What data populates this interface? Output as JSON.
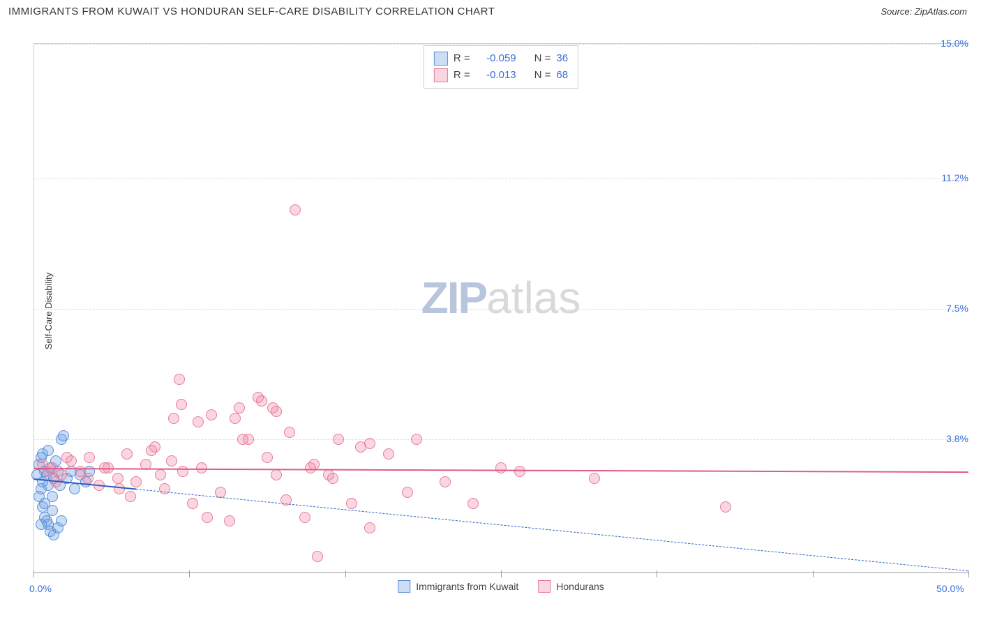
{
  "title": "IMMIGRANTS FROM KUWAIT VS HONDURAN SELF-CARE DISABILITY CORRELATION CHART",
  "source_label": "Source: ZipAtlas.com",
  "y_axis_label": "Self-Care Disability",
  "watermark": {
    "zip": "ZIP",
    "atlas": "atlas"
  },
  "chart": {
    "type": "scatter",
    "xlim": [
      0,
      50
    ],
    "ylim": [
      0,
      15
    ],
    "x_ticks": [
      0,
      50
    ],
    "x_tick_labels": [
      "0.0%",
      "50.0%"
    ],
    "x_minor_ticks": [
      0,
      8.33,
      16.67,
      25,
      33.33,
      41.67,
      50
    ],
    "y_ticks": [
      3.8,
      7.5,
      11.2,
      15.0
    ],
    "y_tick_labels": [
      "3.8%",
      "7.5%",
      "11.2%",
      "15.0%"
    ],
    "background_color": "#ffffff",
    "grid_color": "#dddddd",
    "axis_color": "#999999",
    "tick_label_color": "#3b6fd6",
    "marker_radius": 8,
    "series": [
      {
        "name": "Immigrants from Kuwait",
        "marker_fill": "rgba(110,160,230,0.35)",
        "marker_stroke": "#5a8fd8",
        "R": -0.059,
        "N": 36,
        "trend": {
          "start": [
            0,
            2.7
          ],
          "end": [
            50,
            0.1
          ],
          "solid_frac": 0.11,
          "color": "#2d5fc4",
          "width": 2
        },
        "points": [
          [
            0.3,
            3.1
          ],
          [
            0.5,
            2.6
          ],
          [
            0.6,
            2.9
          ],
          [
            0.4,
            2.4
          ],
          [
            0.7,
            2.8
          ],
          [
            0.8,
            2.5
          ],
          [
            0.9,
            3.0
          ],
          [
            1.0,
            2.2
          ],
          [
            1.1,
            2.7
          ],
          [
            1.2,
            3.2
          ],
          [
            0.5,
            1.9
          ],
          [
            0.6,
            1.6
          ],
          [
            0.7,
            1.5
          ],
          [
            0.8,
            1.4
          ],
          [
            0.9,
            1.2
          ],
          [
            1.5,
            3.8
          ],
          [
            1.6,
            3.9
          ],
          [
            1.3,
            2.9
          ],
          [
            1.4,
            2.5
          ],
          [
            1.8,
            2.7
          ],
          [
            2.0,
            2.9
          ],
          [
            2.2,
            2.4
          ],
          [
            1.0,
            1.8
          ],
          [
            1.1,
            1.1
          ],
          [
            1.3,
            1.3
          ],
          [
            1.5,
            1.5
          ],
          [
            0.4,
            3.3
          ],
          [
            0.3,
            2.2
          ],
          [
            0.5,
            3.4
          ],
          [
            0.2,
            2.8
          ],
          [
            0.6,
            2.0
          ],
          [
            2.5,
            2.8
          ],
          [
            2.8,
            2.6
          ],
          [
            3.0,
            2.9
          ],
          [
            0.4,
            1.4
          ],
          [
            0.8,
            3.5
          ]
        ]
      },
      {
        "name": "Hondurans",
        "marker_fill": "rgba(240,140,165,0.35)",
        "marker_stroke": "#e77a98",
        "R": -0.013,
        "N": 68,
        "trend": {
          "start": [
            0,
            3.0
          ],
          "end": [
            50,
            2.9
          ],
          "solid_frac": 1.0,
          "color": "#e05b88",
          "width": 2
        },
        "points": [
          [
            0.5,
            3.1
          ],
          [
            1.0,
            3.0
          ],
          [
            1.5,
            2.8
          ],
          [
            2.0,
            3.2
          ],
          [
            2.5,
            2.9
          ],
          [
            3.0,
            3.3
          ],
          [
            3.5,
            2.5
          ],
          [
            4.0,
            3.0
          ],
          [
            4.5,
            2.7
          ],
          [
            5.0,
            3.4
          ],
          [
            5.5,
            2.6
          ],
          [
            6.0,
            3.1
          ],
          [
            6.5,
            3.6
          ],
          [
            7.0,
            2.4
          ],
          [
            7.5,
            4.4
          ],
          [
            8.0,
            2.9
          ],
          [
            7.8,
            5.5
          ],
          [
            7.9,
            4.8
          ],
          [
            8.5,
            2.0
          ],
          [
            9.0,
            3.0
          ],
          [
            9.5,
            4.5
          ],
          [
            10.0,
            2.3
          ],
          [
            10.5,
            1.5
          ],
          [
            11.0,
            4.7
          ],
          [
            11.5,
            3.8
          ],
          [
            12.0,
            5.0
          ],
          [
            12.2,
            4.9
          ],
          [
            13.0,
            2.8
          ],
          [
            13.0,
            4.6
          ],
          [
            13.5,
            2.1
          ],
          [
            13.7,
            4.0
          ],
          [
            14.0,
            10.3
          ],
          [
            14.5,
            1.6
          ],
          [
            15.0,
            3.1
          ],
          [
            15.2,
            0.5
          ],
          [
            15.8,
            2.8
          ],
          [
            16.0,
            2.7
          ],
          [
            16.3,
            3.8
          ],
          [
            17.0,
            2.0
          ],
          [
            17.5,
            3.6
          ],
          [
            18.0,
            1.3
          ],
          [
            18.0,
            3.7
          ],
          [
            19.0,
            3.4
          ],
          [
            20.0,
            2.3
          ],
          [
            20.5,
            3.8
          ],
          [
            22.0,
            2.6
          ],
          [
            23.5,
            2.0
          ],
          [
            25.0,
            3.0
          ],
          [
            26.0,
            2.9
          ],
          [
            30.0,
            2.7
          ],
          [
            37.0,
            1.9
          ],
          [
            5.2,
            2.2
          ],
          [
            6.3,
            3.5
          ],
          [
            4.6,
            2.4
          ],
          [
            3.8,
            3.0
          ],
          [
            2.9,
            2.7
          ],
          [
            1.8,
            3.3
          ],
          [
            1.2,
            2.6
          ],
          [
            0.8,
            2.9
          ],
          [
            6.8,
            2.8
          ],
          [
            8.8,
            4.3
          ],
          [
            10.8,
            4.4
          ],
          [
            12.5,
            3.3
          ],
          [
            14.8,
            3.0
          ],
          [
            9.3,
            1.6
          ],
          [
            12.8,
            4.7
          ],
          [
            11.2,
            3.8
          ],
          [
            7.4,
            3.2
          ]
        ]
      }
    ]
  },
  "legend_top": {
    "rows": [
      {
        "swatch_fill": "rgba(110,160,230,0.35)",
        "swatch_stroke": "#5a8fd8",
        "r_label": "R =",
        "r_val": "-0.059",
        "n_label": "N =",
        "n_val": "36"
      },
      {
        "swatch_fill": "rgba(240,140,165,0.35)",
        "swatch_stroke": "#e77a98",
        "r_label": "R =",
        "r_val": "-0.013",
        "n_label": "N =",
        "n_val": "68"
      }
    ]
  },
  "legend_bottom": {
    "items": [
      {
        "swatch_fill": "rgba(110,160,230,0.35)",
        "swatch_stroke": "#5a8fd8",
        "label": "Immigrants from Kuwait"
      },
      {
        "swatch_fill": "rgba(240,140,165,0.35)",
        "swatch_stroke": "#e77a98",
        "label": "Hondurans"
      }
    ]
  }
}
